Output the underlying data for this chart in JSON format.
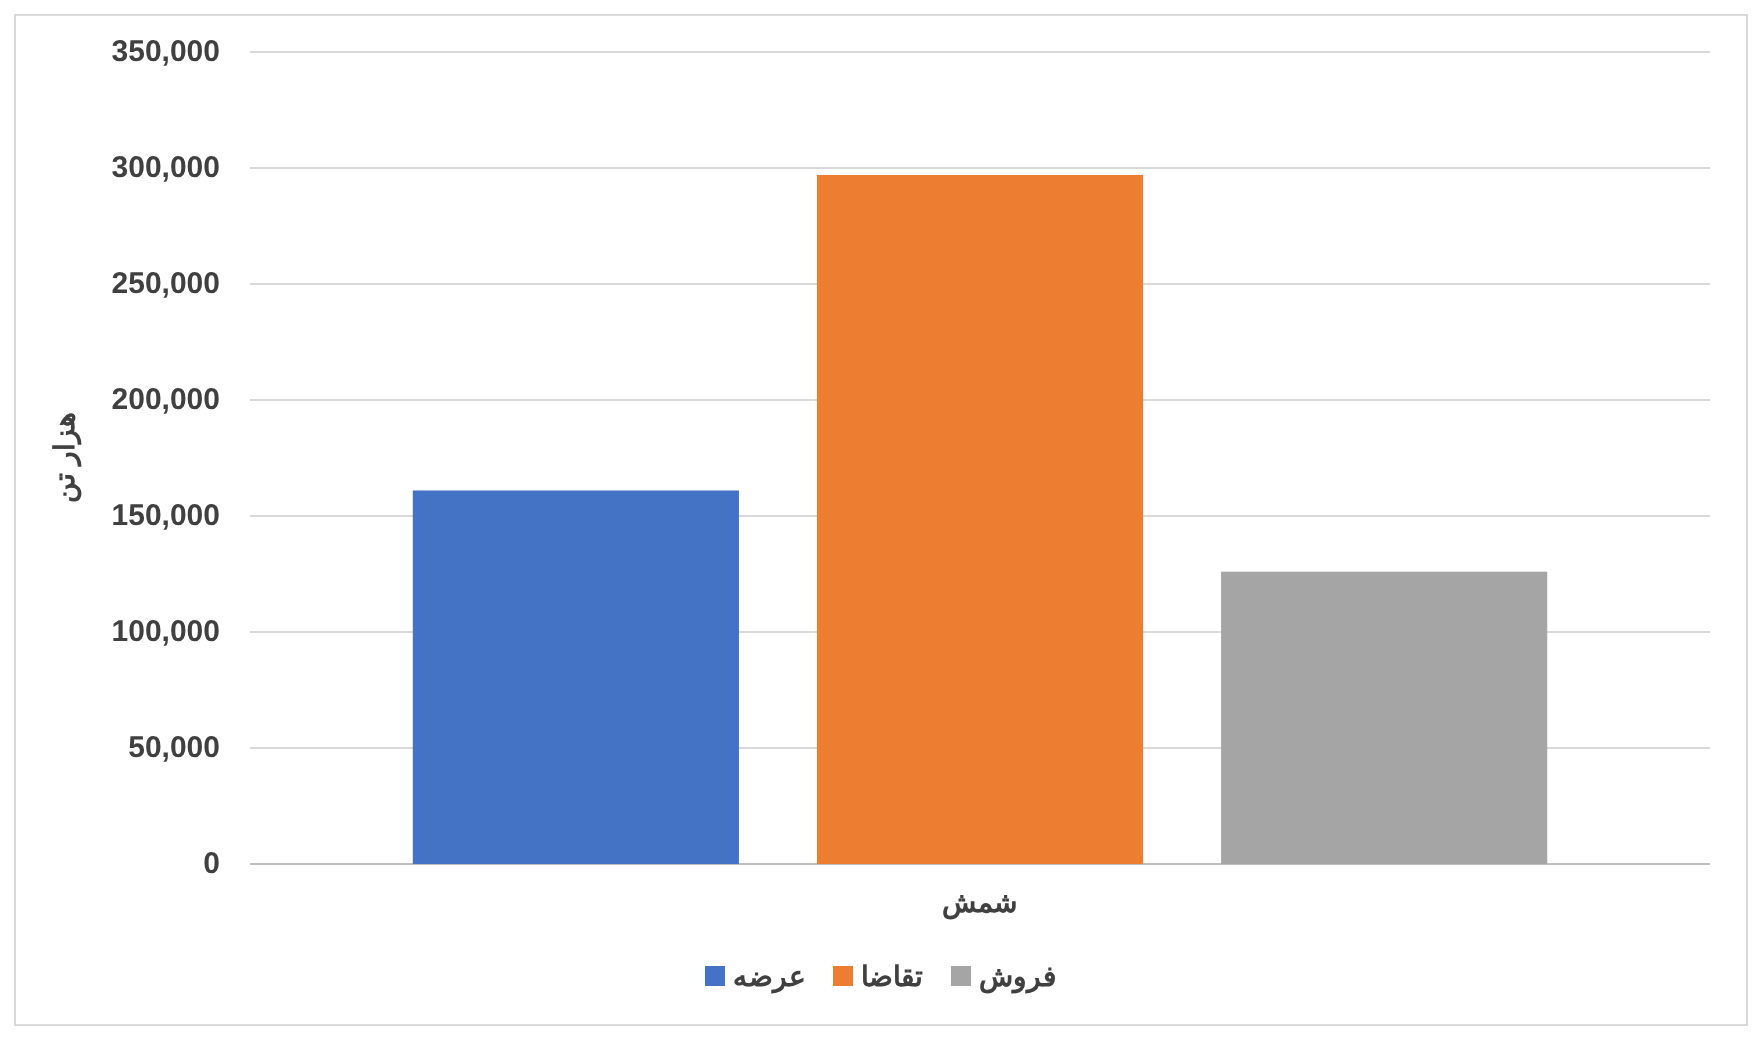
{
  "chart_data": {
    "type": "bar",
    "ylabel": "هزار تن",
    "categories": [
      "شمش"
    ],
    "series": [
      {
        "name": "عرضه",
        "color": "#4472c4",
        "values": [
          161000
        ]
      },
      {
        "name": "تقاضا",
        "color": "#ed7d31",
        "values": [
          297000
        ]
      },
      {
        "name": "فروش",
        "color": "#a5a5a5",
        "values": [
          126000
        ]
      }
    ],
    "ylim": [
      0,
      350000
    ],
    "yticks": [
      0,
      {
        "value": 50000,
        "label": "50,000"
      },
      {
        "value": 100000,
        "label": "100,000"
      },
      {
        "value": 150000,
        "label": "150,000"
      },
      {
        "value": 200000,
        "label": "200,000"
      },
      {
        "value": 250000,
        "label": "250,000"
      },
      {
        "value": 300000,
        "label": "300,000"
      },
      {
        "value": 350000,
        "label": "350,000"
      }
    ],
    "grid": "y",
    "legend": "bottom"
  }
}
